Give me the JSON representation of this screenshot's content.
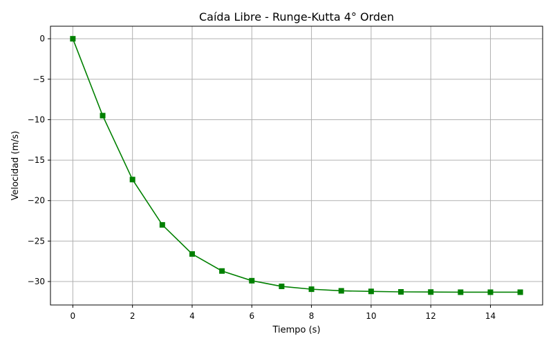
{
  "chart_data": {
    "type": "line",
    "title": "Caída Libre - Runge-Kutta 4° Orden",
    "xlabel": "Tiempo (s)",
    "ylabel": "Velocidad (m/s)",
    "xlim": [
      -0.75,
      15.75
    ],
    "ylim": [
      -32.9,
      1.55
    ],
    "grid": true,
    "x_ticks": [
      0,
      2,
      4,
      6,
      8,
      10,
      12,
      14
    ],
    "y_ticks": [
      0,
      -5,
      -10,
      -15,
      -20,
      -25,
      -30
    ],
    "x_tick_labels": [
      "0",
      "2",
      "4",
      "6",
      "8",
      "10",
      "12",
      "14"
    ],
    "y_tick_labels": [
      "0",
      "−5",
      "−10",
      "−15",
      "−20",
      "−25",
      "−30"
    ],
    "series": [
      {
        "color": "#008000",
        "marker": "square",
        "x": [
          0,
          1,
          2,
          3,
          4,
          5,
          6,
          7,
          8,
          9,
          10,
          11,
          12,
          13,
          14,
          15
        ],
        "y": [
          0,
          -9.5,
          -17.4,
          -23.0,
          -26.6,
          -28.7,
          -29.9,
          -30.6,
          -30.95,
          -31.15,
          -31.22,
          -31.28,
          -31.3,
          -31.32,
          -31.32,
          -31.32
        ]
      }
    ]
  }
}
